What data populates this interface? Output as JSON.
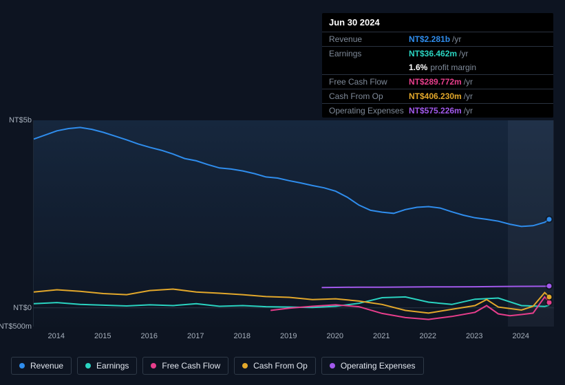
{
  "tooltip": {
    "title": "Jun 30 2024",
    "rows": [
      {
        "label": "Revenue",
        "value": "NT$2.281b",
        "suffix": "/yr",
        "color": "#2f8ded"
      },
      {
        "label": "Earnings",
        "value": "NT$36.462m",
        "suffix": "/yr",
        "color": "#2ad4c1"
      },
      {
        "label": "Free Cash Flow",
        "value": "NT$289.772m",
        "suffix": "/yr",
        "color": "#e83e8c"
      },
      {
        "label": "Cash From Op",
        "value": "NT$406.230m",
        "suffix": "/yr",
        "color": "#e3a82b"
      },
      {
        "label": "Operating Expenses",
        "value": "NT$575.226m",
        "suffix": "/yr",
        "color": "#a259ec"
      }
    ],
    "profit_margin": {
      "pct": "1.6%",
      "label": "profit margin"
    }
  },
  "chart": {
    "type": "line",
    "background_gradient_top": "rgba(30,55,85,0.55)",
    "background_gradient_bottom": "rgba(15,25,40,0.15)",
    "x_years": [
      2014,
      2015,
      2016,
      2017,
      2018,
      2019,
      2020,
      2021,
      2022,
      2023,
      2024
    ],
    "x_range": [
      2013.5,
      2024.7
    ],
    "y_range_m": [
      -500,
      5000
    ],
    "y_ticks": [
      {
        "v": 5000,
        "label": "NT$5b"
      },
      {
        "v": 0,
        "label": "NT$0"
      },
      {
        "v": -500,
        "label": "-NT$500m"
      }
    ],
    "hover_band": {
      "x_from": 2023.7,
      "x_to": 2024.7
    },
    "series": [
      {
        "name": "Revenue",
        "color": "#2f8ded",
        "points": [
          [
            2013.5,
            4500
          ],
          [
            2013.75,
            4610
          ],
          [
            2014,
            4720
          ],
          [
            2014.25,
            4780
          ],
          [
            2014.5,
            4810
          ],
          [
            2014.75,
            4760
          ],
          [
            2015,
            4680
          ],
          [
            2015.25,
            4580
          ],
          [
            2015.5,
            4480
          ],
          [
            2015.75,
            4370
          ],
          [
            2016,
            4280
          ],
          [
            2016.25,
            4200
          ],
          [
            2016.5,
            4100
          ],
          [
            2016.75,
            3980
          ],
          [
            2017,
            3920
          ],
          [
            2017.25,
            3820
          ],
          [
            2017.5,
            3730
          ],
          [
            2017.75,
            3700
          ],
          [
            2018,
            3650
          ],
          [
            2018.25,
            3580
          ],
          [
            2018.5,
            3490
          ],
          [
            2018.75,
            3460
          ],
          [
            2019,
            3390
          ],
          [
            2019.25,
            3330
          ],
          [
            2019.5,
            3260
          ],
          [
            2019.75,
            3200
          ],
          [
            2020,
            3110
          ],
          [
            2020.25,
            2950
          ],
          [
            2020.5,
            2740
          ],
          [
            2020.75,
            2600
          ],
          [
            2021,
            2550
          ],
          [
            2021.25,
            2520
          ],
          [
            2021.5,
            2620
          ],
          [
            2021.75,
            2680
          ],
          [
            2022,
            2700
          ],
          [
            2022.25,
            2660
          ],
          [
            2022.5,
            2560
          ],
          [
            2022.75,
            2470
          ],
          [
            2023,
            2400
          ],
          [
            2023.25,
            2360
          ],
          [
            2023.5,
            2310
          ],
          [
            2023.75,
            2230
          ],
          [
            2024,
            2170
          ],
          [
            2024.25,
            2190
          ],
          [
            2024.5,
            2281
          ],
          [
            2024.6,
            2360
          ]
        ],
        "endpoint": true
      },
      {
        "name": "Earnings",
        "color": "#2ad4c1",
        "points": [
          [
            2013.5,
            110
          ],
          [
            2014,
            140
          ],
          [
            2014.5,
            90
          ],
          [
            2015,
            70
          ],
          [
            2015.5,
            50
          ],
          [
            2016,
            80
          ],
          [
            2016.5,
            60
          ],
          [
            2017,
            110
          ],
          [
            2017.5,
            40
          ],
          [
            2018,
            60
          ],
          [
            2018.5,
            30
          ],
          [
            2019,
            20
          ],
          [
            2019.5,
            10
          ],
          [
            2020,
            40
          ],
          [
            2020.5,
            120
          ],
          [
            2021,
            270
          ],
          [
            2021.5,
            290
          ],
          [
            2022,
            150
          ],
          [
            2022.5,
            90
          ],
          [
            2023,
            230
          ],
          [
            2023.5,
            260
          ],
          [
            2024,
            60
          ],
          [
            2024.5,
            36
          ],
          [
            2024.6,
            70
          ]
        ],
        "endpoint": false
      },
      {
        "name": "Free Cash Flow",
        "color": "#e83e8c",
        "points": [
          [
            2018.6,
            -70
          ],
          [
            2019,
            -10
          ],
          [
            2019.5,
            40
          ],
          [
            2020,
            80
          ],
          [
            2020.5,
            30
          ],
          [
            2021,
            -150
          ],
          [
            2021.5,
            -260
          ],
          [
            2022,
            -310
          ],
          [
            2022.5,
            -230
          ],
          [
            2023,
            -120
          ],
          [
            2023.25,
            60
          ],
          [
            2023.5,
            -160
          ],
          [
            2023.75,
            -210
          ],
          [
            2024,
            -180
          ],
          [
            2024.25,
            -140
          ],
          [
            2024.5,
            290
          ],
          [
            2024.6,
            150
          ]
        ],
        "endpoint": true
      },
      {
        "name": "Cash From Op",
        "color": "#e3a82b",
        "points": [
          [
            2013.5,
            420
          ],
          [
            2014,
            480
          ],
          [
            2014.5,
            440
          ],
          [
            2015,
            380
          ],
          [
            2015.5,
            350
          ],
          [
            2016,
            460
          ],
          [
            2016.5,
            500
          ],
          [
            2017,
            420
          ],
          [
            2017.5,
            390
          ],
          [
            2018,
            350
          ],
          [
            2018.5,
            300
          ],
          [
            2019,
            280
          ],
          [
            2019.5,
            220
          ],
          [
            2020,
            240
          ],
          [
            2020.5,
            180
          ],
          [
            2021,
            90
          ],
          [
            2021.5,
            -70
          ],
          [
            2022,
            -140
          ],
          [
            2022.5,
            -40
          ],
          [
            2023,
            60
          ],
          [
            2023.25,
            220
          ],
          [
            2023.5,
            20
          ],
          [
            2024,
            -60
          ],
          [
            2024.25,
            40
          ],
          [
            2024.5,
            406
          ],
          [
            2024.6,
            290
          ]
        ],
        "endpoint": true
      },
      {
        "name": "Operating Expenses",
        "color": "#a259ec",
        "points": [
          [
            2019.7,
            540
          ],
          [
            2020,
            545
          ],
          [
            2020.5,
            550
          ],
          [
            2021,
            550
          ],
          [
            2021.5,
            555
          ],
          [
            2022,
            558
          ],
          [
            2022.5,
            560
          ],
          [
            2023,
            562
          ],
          [
            2023.5,
            568
          ],
          [
            2024,
            572
          ],
          [
            2024.5,
            575
          ],
          [
            2024.6,
            576
          ]
        ],
        "endpoint": true
      }
    ]
  },
  "legend": [
    {
      "label": "Revenue",
      "color": "#2f8ded"
    },
    {
      "label": "Earnings",
      "color": "#2ad4c1"
    },
    {
      "label": "Free Cash Flow",
      "color": "#e83e8c"
    },
    {
      "label": "Cash From Op",
      "color": "#e3a82b"
    },
    {
      "label": "Operating Expenses",
      "color": "#a259ec"
    }
  ]
}
